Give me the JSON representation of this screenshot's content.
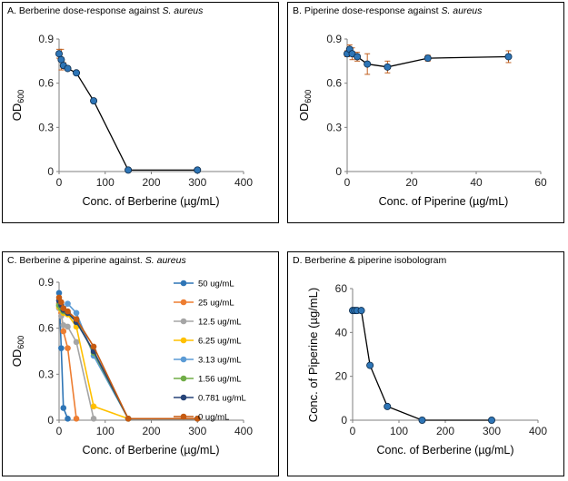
{
  "colors": {
    "marker": "#2E75B6",
    "line": "#000000",
    "errorbar": "#C06020",
    "panel_border": "#000000"
  },
  "chart_data": [
    {
      "panel": "A",
      "type": "line",
      "title_prefix": "A. Berberine dose-response against ",
      "title_species": "S. aureus",
      "xlabel": "Conc. of Berberine (µg/mL)",
      "ylabel_main": "OD",
      "ylabel_sub": "600",
      "xlim": [
        0,
        400
      ],
      "xticks": [
        0,
        100,
        200,
        300,
        400
      ],
      "ylim": [
        0,
        0.9
      ],
      "yticks": [
        "0",
        "0.3",
        "0.6",
        "0.9"
      ],
      "series": [
        {
          "name": "Berberine",
          "x": [
            0,
            4.7,
            9.4,
            18.75,
            37.5,
            75,
            150,
            300
          ],
          "y": [
            0.8,
            0.76,
            0.72,
            0.7,
            0.67,
            0.48,
            0.01,
            0.01
          ],
          "err": [
            0.03,
            0.07,
            0.02,
            0.01,
            0.01,
            0.01,
            0.0,
            0.0
          ]
        }
      ]
    },
    {
      "panel": "B",
      "type": "line",
      "title_prefix": "B. Piperine dose-response against ",
      "title_species": "S. aureus",
      "xlabel": "Conc. of Piperine (µg/mL)",
      "ylabel_main": "OD",
      "ylabel_sub": "600",
      "xlim": [
        0,
        60
      ],
      "xticks": [
        0,
        20,
        40,
        60
      ],
      "ylim": [
        0,
        0.9
      ],
      "yticks": [
        "0",
        "0.3",
        "0.6",
        "0.9"
      ],
      "series": [
        {
          "name": "Piperine",
          "x": [
            0,
            0.78,
            1.56,
            3.13,
            6.25,
            12.5,
            25,
            50
          ],
          "y": [
            0.8,
            0.83,
            0.8,
            0.78,
            0.73,
            0.71,
            0.77,
            0.78
          ],
          "err": [
            0.02,
            0.03,
            0.04,
            0.03,
            0.07,
            0.04,
            0.02,
            0.04
          ]
        }
      ]
    },
    {
      "panel": "C",
      "type": "line",
      "title_prefix": "C. Berberine & piperine against. ",
      "title_species": "S. aureus",
      "xlabel": "Conc. of Berberine (µg/mL)",
      "ylabel_main": "OD",
      "ylabel_sub": "600",
      "xlim": [
        0,
        400
      ],
      "xticks": [
        0,
        100,
        200,
        300,
        400
      ],
      "ylim": [
        0,
        0.9
      ],
      "yticks": [
        "0",
        "0.3",
        "0.6",
        "0.9"
      ],
      "x": [
        0,
        4.7,
        9.4,
        18.75,
        37.5,
        75,
        150,
        300
      ],
      "series": [
        {
          "name": "50 ug/mL",
          "color": "#2E75B6",
          "y": [
            0.83,
            0.47,
            0.08,
            0.01,
            null,
            null,
            null,
            null
          ]
        },
        {
          "name": "25 ug/mL",
          "color": "#ED7D31",
          "y": [
            0.76,
            0.7,
            0.58,
            0.47,
            0.01,
            null,
            null,
            null
          ]
        },
        {
          "name": "12.5 ug/mL",
          "color": "#A5A5A5",
          "y": [
            0.73,
            0.68,
            0.62,
            0.61,
            0.51,
            0.01,
            null,
            null
          ]
        },
        {
          "name": "6.25 ug/mL",
          "color": "#FFC000",
          "y": [
            0.74,
            0.72,
            0.7,
            0.69,
            0.61,
            0.09,
            0.01,
            null
          ]
        },
        {
          "name": "3.13 ug/mL",
          "color": "#5B9BD5",
          "y": [
            0.75,
            0.73,
            0.72,
            0.76,
            0.7,
            0.42,
            0.01,
            0.01
          ]
        },
        {
          "name": "1.56 ug/mL",
          "color": "#70AD47",
          "y": [
            0.75,
            0.73,
            0.71,
            0.7,
            0.65,
            0.44,
            0.01,
            0.01
          ]
        },
        {
          "name": "0.781 ug/mL",
          "color": "#264478",
          "y": [
            0.78,
            0.75,
            0.72,
            0.7,
            0.64,
            0.45,
            0.01,
            0.01
          ]
        },
        {
          "name": "0 ug/mL",
          "color": "#C55A11",
          "y": [
            0.8,
            0.77,
            0.73,
            0.71,
            0.66,
            0.48,
            0.01,
            0.01
          ]
        }
      ]
    },
    {
      "panel": "D",
      "type": "line",
      "title": "D. Berberine & piperine isobologram",
      "xlabel": "Conc. of Berberine (µg/mL)",
      "ylabel": "Conc. of Piperine (µg/mL)",
      "xlim": [
        0,
        400
      ],
      "xticks": [
        0,
        100,
        200,
        300,
        400
      ],
      "ylim": [
        0,
        60
      ],
      "yticks": [
        "0",
        "20",
        "40",
        "60"
      ],
      "series": [
        {
          "name": "Isobologram",
          "x": [
            0,
            4.7,
            9.4,
            18.75,
            37.5,
            75,
            150,
            300
          ],
          "y": [
            50,
            50,
            50,
            50,
            25,
            6.25,
            0,
            0
          ]
        }
      ]
    }
  ]
}
